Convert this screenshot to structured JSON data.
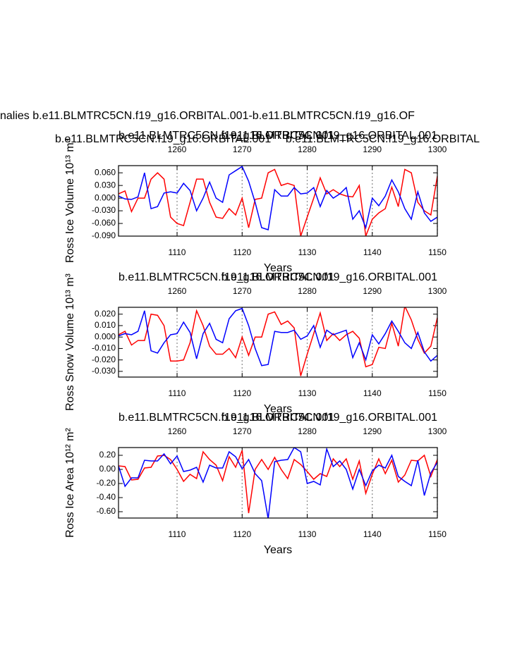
{
  "figure": {
    "title": "nalies b.e11.BLMTRC5CN.f19_g16.ORBITAL.001-b.e11.BLMTRC5CN.f19_g16.OF",
    "subtitle_left": "b.e11.BLMTRC5CN.f19_g16.ORBITAL.001",
    "subtitle_left_color": "#0000ff",
    "subtitle_right": "b.e11.BLMTRC5CN.f19_g16.ORBITAL",
    "subtitle_right_color": "#ff0000"
  },
  "chart_data": [
    {
      "type": "line",
      "ylabel": "Ross Ice Volume 10¹³ m³",
      "xlabel": "Years",
      "grid": true,
      "x": [
        1101,
        1102,
        1103,
        1104,
        1105,
        1106,
        1107,
        1108,
        1109,
        1110,
        1111,
        1112,
        1113,
        1114,
        1115,
        1116,
        1117,
        1118,
        1119,
        1120,
        1121,
        1122,
        1123,
        1124,
        1125,
        1126,
        1127,
        1128,
        1129,
        1130,
        1131,
        1132,
        1133,
        1134,
        1135,
        1136,
        1137,
        1138,
        1139,
        1140,
        1141,
        1142,
        1143,
        1144,
        1145,
        1146,
        1147,
        1148,
        1149,
        1150
      ],
      "x2": [
        1251,
        1252,
        1253,
        1254,
        1255,
        1256,
        1257,
        1258,
        1259,
        1260,
        1261,
        1262,
        1263,
        1264,
        1265,
        1266,
        1267,
        1268,
        1269,
        1270,
        1271,
        1272,
        1273,
        1274,
        1275,
        1276,
        1277,
        1278,
        1279,
        1280,
        1281,
        1282,
        1283,
        1284,
        1285,
        1286,
        1287,
        1288,
        1289,
        1290,
        1291,
        1292,
        1293,
        1294,
        1295,
        1296,
        1297,
        1298,
        1299,
        1300
      ],
      "xlim": [
        1101,
        1150
      ],
      "xticks": [
        1110,
        1120,
        1130,
        1140,
        1150
      ],
      "x2lim": [
        1251,
        1300
      ],
      "x2ticks": [
        1260,
        1270,
        1280,
        1290,
        1300
      ],
      "ylim": [
        -0.09,
        0.077
      ],
      "yticks": [
        {
          "value": 0.06,
          "label": "0.060"
        },
        {
          "value": 0.03,
          "label": "0.030"
        },
        {
          "value": 0,
          "label": "0.000"
        },
        {
          "value": -0.03,
          "label": "-0.030"
        },
        {
          "value": -0.06,
          "label": "-0.060"
        },
        {
          "value": -0.09,
          "label": "-0.090"
        }
      ],
      "series": [
        {
          "name": "b.e11.BLMTRC5CN.f19_g16.ORBITAL.001",
          "color": "#ff0000",
          "axis": "x2",
          "values": [
            0.01,
            0.017,
            -0.032,
            0.0,
            0.0,
            0.045,
            0.06,
            0.045,
            -0.045,
            -0.06,
            -0.065,
            -0.01,
            0.045,
            0.045,
            -0.01,
            -0.045,
            -0.048,
            -0.025,
            -0.04,
            0.0,
            -0.07,
            -0.003,
            0.0,
            0.06,
            0.068,
            0.03,
            0.035,
            0.03,
            -0.09,
            -0.045,
            0.0,
            0.048,
            0.01,
            0.02,
            0.01,
            0.005,
            0.003,
            0.03,
            -0.09,
            -0.05,
            -0.035,
            -0.025,
            0.026,
            -0.02,
            0.068,
            0.06,
            -0.01,
            -0.03,
            -0.04,
            0.052
          ]
        },
        {
          "name": "b.e11.BLMTRC5CN.f19_g16.ORBITAL.001",
          "color": "#0000ff",
          "values": [
            0.005,
            -0.002,
            -0.003,
            0.003,
            0.06,
            -0.025,
            -0.02,
            0.012,
            0.015,
            0.012,
            0.035,
            0.018,
            -0.03,
            0.0,
            0.038,
            0.0,
            -0.01,
            0.055,
            0.065,
            0.075,
            0.04,
            -0.01,
            -0.07,
            -0.075,
            0.02,
            0.005,
            0.005,
            0.025,
            0.01,
            0.012,
            0.025,
            -0.02,
            0.018,
            0.0,
            0.01,
            0.025,
            -0.05,
            -0.03,
            -0.07,
            0.0,
            -0.018,
            0.005,
            0.043,
            0.015,
            -0.025,
            -0.05,
            0.015,
            -0.035,
            -0.055,
            -0.045
          ]
        }
      ]
    },
    {
      "type": "line",
      "ylabel": "Ross Snow Volume 10¹³ m³",
      "xlabel": "Years",
      "grid": true,
      "x": [
        1101,
        1102,
        1103,
        1104,
        1105,
        1106,
        1107,
        1108,
        1109,
        1110,
        1111,
        1112,
        1113,
        1114,
        1115,
        1116,
        1117,
        1118,
        1119,
        1120,
        1121,
        1122,
        1123,
        1124,
        1125,
        1126,
        1127,
        1128,
        1129,
        1130,
        1131,
        1132,
        1133,
        1134,
        1135,
        1136,
        1137,
        1138,
        1139,
        1140,
        1141,
        1142,
        1143,
        1144,
        1145,
        1146,
        1147,
        1148,
        1149,
        1150
      ],
      "x2": [
        1251,
        1252,
        1253,
        1254,
        1255,
        1256,
        1257,
        1258,
        1259,
        1260,
        1261,
        1262,
        1263,
        1264,
        1265,
        1266,
        1267,
        1268,
        1269,
        1270,
        1271,
        1272,
        1273,
        1274,
        1275,
        1276,
        1277,
        1278,
        1279,
        1280,
        1281,
        1282,
        1283,
        1284,
        1285,
        1286,
        1287,
        1288,
        1289,
        1290,
        1291,
        1292,
        1293,
        1294,
        1295,
        1296,
        1297,
        1298,
        1299,
        1300
      ],
      "xlim": [
        1101,
        1150
      ],
      "xticks": [
        1110,
        1120,
        1130,
        1140,
        1150
      ],
      "x2lim": [
        1251,
        1300
      ],
      "x2ticks": [
        1260,
        1270,
        1280,
        1290,
        1300
      ],
      "ylim": [
        -0.035,
        0.026
      ],
      "yticks": [
        {
          "value": 0.02,
          "label": "0.020"
        },
        {
          "value": 0.01,
          "label": "0.010"
        },
        {
          "value": 0,
          "label": "0.000"
        },
        {
          "value": -0.01,
          "label": "-0.010"
        },
        {
          "value": -0.02,
          "label": "-0.020"
        },
        {
          "value": -0.03,
          "label": "-0.030"
        }
      ],
      "series": [
        {
          "name": "b.e11.BLMTRC5CN.f19_g16.ORBITAL.001",
          "color": "#ff0000",
          "axis": "x2",
          "values": [
            0.002,
            0.005,
            -0.007,
            -0.003,
            -0.003,
            0.02,
            0.019,
            0.01,
            -0.021,
            -0.021,
            -0.02,
            -0.005,
            0.023,
            0.01,
            -0.008,
            -0.015,
            -0.015,
            -0.01,
            -0.018,
            0.0,
            -0.016,
            0.0,
            0.0,
            0.02,
            0.022,
            0.011,
            0.014,
            0.008,
            -0.034,
            -0.015,
            0.003,
            0.021,
            -0.003,
            0.003,
            -0.003,
            0.002,
            0.005,
            -0.001,
            -0.026,
            -0.024,
            -0.009,
            -0.01,
            0.012,
            -0.008,
            0.027,
            0.015,
            -0.002,
            -0.014,
            -0.008,
            0.017
          ]
        },
        {
          "name": "b.e11.BLMTRC5CN.f19_g16.ORBITAL.001",
          "color": "#0000ff",
          "values": [
            0.001,
            0.003,
            0.002,
            0.005,
            0.023,
            -0.012,
            -0.014,
            -0.005,
            0.002,
            0.003,
            0.013,
            0.004,
            -0.019,
            0.003,
            0.012,
            -0.002,
            -0.005,
            0.016,
            0.023,
            0.025,
            0.01,
            -0.01,
            -0.025,
            -0.024,
            0.005,
            0.004,
            0.004,
            0.006,
            -0.002,
            0.001,
            0.01,
            -0.009,
            0.006,
            0.002,
            0.004,
            0.006,
            -0.018,
            -0.005,
            -0.02,
            0.002,
            -0.006,
            0.003,
            0.014,
            0.005,
            -0.005,
            -0.01,
            0.004,
            -0.013,
            -0.021,
            -0.016
          ]
        }
      ]
    },
    {
      "type": "line",
      "ylabel": "Ross Ice Area 10¹² m²",
      "xlabel": "Years",
      "grid": true,
      "x": [
        1101,
        1102,
        1103,
        1104,
        1105,
        1106,
        1107,
        1108,
        1109,
        1110,
        1111,
        1112,
        1113,
        1114,
        1115,
        1116,
        1117,
        1118,
        1119,
        1120,
        1121,
        1122,
        1123,
        1124,
        1125,
        1126,
        1127,
        1128,
        1129,
        1130,
        1131,
        1132,
        1133,
        1134,
        1135,
        1136,
        1137,
        1138,
        1139,
        1140,
        1141,
        1142,
        1143,
        1144,
        1145,
        1146,
        1147,
        1148,
        1149,
        1150
      ],
      "x2": [
        1251,
        1252,
        1253,
        1254,
        1255,
        1256,
        1257,
        1258,
        1259,
        1260,
        1261,
        1262,
        1263,
        1264,
        1265,
        1266,
        1267,
        1268,
        1269,
        1270,
        1271,
        1272,
        1273,
        1274,
        1275,
        1276,
        1277,
        1278,
        1279,
        1280,
        1281,
        1282,
        1283,
        1284,
        1285,
        1286,
        1287,
        1288,
        1289,
        1290,
        1291,
        1292,
        1293,
        1294,
        1295,
        1296,
        1297,
        1298,
        1299,
        1300
      ],
      "xlim": [
        1101,
        1150
      ],
      "xticks": [
        1110,
        1120,
        1130,
        1140,
        1150
      ],
      "x2lim": [
        1251,
        1300
      ],
      "x2ticks": [
        1260,
        1270,
        1280,
        1290,
        1300
      ],
      "ylim": [
        -0.69,
        0.31
      ],
      "yticks": [
        {
          "value": 0.2,
          "label": "0.20"
        },
        {
          "value": 0,
          "label": "0.00"
        },
        {
          "value": -0.2,
          "label": "-0.20"
        },
        {
          "value": -0.4,
          "label": "-0.40"
        },
        {
          "value": -0.6,
          "label": "-0.60"
        }
      ],
      "series": [
        {
          "name": "b.e11.BLMTRC5CN.f19_g16.ORBITAL.001",
          "color": "#ff0000",
          "axis": "x2",
          "values": [
            0.05,
            0.04,
            -0.15,
            -0.14,
            0.02,
            0.03,
            0.19,
            0.2,
            0.14,
            0.0,
            -0.17,
            -0.07,
            -0.13,
            0.25,
            0.14,
            0.06,
            -0.16,
            0.18,
            0.03,
            0.27,
            -0.62,
            0.0,
            0.14,
            0.0,
            0.17,
            0.0,
            -0.13,
            0.14,
            0.07,
            -0.03,
            -0.14,
            -0.06,
            -0.1,
            0.15,
            0.04,
            0.15,
            -0.14,
            0.12,
            -0.34,
            -0.07,
            0.15,
            -0.06,
            0.13,
            -0.18,
            -0.08,
            0.13,
            0.12,
            0.2,
            -0.1,
            0.14
          ]
        },
        {
          "name": "b.e11.BLMTRC5CN.f19_g16.ORBITAL.001",
          "color": "#0000ff",
          "values": [
            0.05,
            -0.24,
            -0.12,
            -0.12,
            0.13,
            0.12,
            0.12,
            0.22,
            0.08,
            0.19,
            -0.03,
            -0.01,
            0.03,
            -0.18,
            0.06,
            0.02,
            0.02,
            0.25,
            0.18,
            0.01,
            0.14,
            -0.06,
            -0.16,
            -0.7,
            0.11,
            0.13,
            0.14,
            0.31,
            0.25,
            -0.2,
            -0.17,
            -0.22,
            0.29,
            0.04,
            0.12,
            0.0,
            -0.28,
            0.0,
            -0.23,
            -0.02,
            0.06,
            0.02,
            0.2,
            -0.1,
            -0.17,
            -0.23,
            0.13,
            -0.37,
            -0.05,
            0.1
          ]
        }
      ]
    }
  ]
}
